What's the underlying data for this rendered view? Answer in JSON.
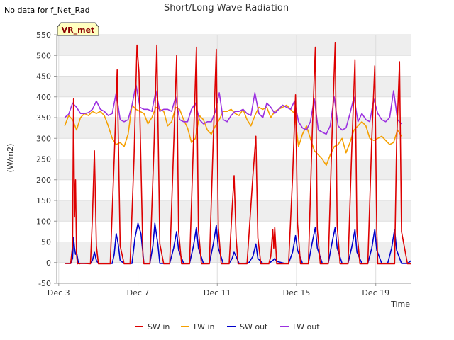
{
  "note": "No data for f_Net_Rad",
  "badge": "VR_met",
  "colors": {
    "sw_in": "#dd0000",
    "lw_in": "#f5a000",
    "sw_out": "#0000cc",
    "lw_out": "#9b30e0",
    "band": "#eeeeee",
    "badge_fill": "#ffffc0",
    "badge_stroke": "#444444"
  },
  "chart_data": {
    "type": "line",
    "title": "Short/Long Wave Radiation",
    "xlabel": "Time",
    "ylabel": "(W/m2)",
    "xlim": [
      2.9,
      20.8
    ],
    "ylim": [
      -50,
      550
    ],
    "yticks": [
      -50,
      0,
      50,
      100,
      150,
      200,
      250,
      300,
      350,
      400,
      450,
      500,
      550
    ],
    "xticks": [
      {
        "value": 3,
        "label": "Dec 3"
      },
      {
        "value": 7,
        "label": "Dec 7"
      },
      {
        "value": 11,
        "label": "Dec 11"
      },
      {
        "value": 15,
        "label": "Dec 15"
      },
      {
        "value": 19,
        "label": "Dec 19"
      }
    ],
    "legend_position": "bottom-center",
    "series": [
      {
        "key": "sw_in",
        "name": "SW in",
        "x": [
          3.3,
          3.6,
          3.7,
          3.75,
          3.8,
          3.85,
          3.9,
          3.95,
          4.0,
          4.05,
          4.1,
          4.3,
          4.6,
          4.7,
          4.8,
          4.9,
          5.0,
          5.1,
          5.3,
          5.6,
          5.8,
          5.95,
          6.1,
          6.3,
          6.6,
          6.8,
          6.95,
          7.05,
          7.25,
          7.3,
          7.6,
          7.8,
          7.95,
          8.1,
          8.3,
          8.6,
          8.8,
          8.95,
          9.05,
          9.2,
          9.3,
          9.6,
          9.8,
          9.95,
          10.05,
          10.2,
          10.3,
          10.6,
          10.8,
          10.95,
          11.05,
          11.2,
          11.3,
          11.6,
          11.75,
          11.85,
          11.95,
          12.05,
          12.3,
          12.5,
          12.8,
          12.95,
          13.05,
          13.2,
          13.3,
          13.6,
          13.7,
          13.8,
          13.85,
          13.9,
          14.0,
          14.2,
          14.4,
          14.6,
          14.8,
          14.95,
          15.05,
          15.2,
          15.3,
          15.6,
          15.8,
          15.95,
          16.05,
          16.2,
          16.3,
          16.6,
          16.8,
          16.95,
          17.05,
          17.2,
          17.3,
          17.6,
          17.8,
          17.95,
          18.05,
          18.2,
          18.3,
          18.6,
          18.8,
          18.95,
          19.05,
          19.1,
          19.2,
          19.3,
          19.6,
          19.8,
          19.95,
          20.05,
          20.2,
          20.3,
          20.6,
          20.8
        ],
        "values": [
          -2,
          -2,
          40,
          395,
          110,
          200,
          20,
          -3,
          -2,
          -3,
          -2,
          -2,
          -3,
          110,
          270,
          40,
          -3,
          -3,
          -3,
          -3,
          250,
          465,
          40,
          -3,
          -3,
          250,
          525,
          460,
          15,
          -3,
          -3,
          270,
          525,
          45,
          -3,
          -3,
          280,
          500,
          75,
          -3,
          -3,
          -3,
          290,
          520,
          80,
          -3,
          -3,
          -3,
          300,
          515,
          85,
          -3,
          -3,
          -3,
          130,
          210,
          60,
          -3,
          -3,
          -3,
          210,
          305,
          60,
          -3,
          -3,
          -3,
          15,
          80,
          35,
          85,
          -3,
          -3,
          -3,
          -3,
          205,
          405,
          95,
          -3,
          -3,
          -3,
          320,
          520,
          80,
          -3,
          -3,
          -3,
          320,
          530,
          90,
          -3,
          -3,
          -3,
          290,
          490,
          75,
          -3,
          -3,
          -3,
          300,
          475,
          80,
          -3,
          -3,
          -3,
          -3,
          -3,
          -3,
          290,
          485,
          75,
          -3,
          -3
        ]
      },
      {
        "key": "lw_in",
        "name": "LW in",
        "x": [
          3.3,
          3.5,
          3.7,
          3.9,
          4.1,
          4.3,
          4.5,
          4.7,
          4.9,
          5.1,
          5.3,
          5.5,
          5.7,
          5.9,
          6.1,
          6.3,
          6.5,
          6.7,
          6.9,
          7.1,
          7.3,
          7.5,
          7.7,
          7.9,
          8.1,
          8.3,
          8.5,
          8.7,
          8.9,
          9.1,
          9.3,
          9.5,
          9.7,
          9.9,
          10.1,
          10.3,
          10.5,
          10.7,
          10.9,
          11.1,
          11.3,
          11.5,
          11.7,
          11.9,
          12.1,
          12.3,
          12.5,
          12.7,
          12.9,
          13.1,
          13.3,
          13.5,
          13.7,
          13.9,
          14.1,
          14.3,
          14.5,
          14.7,
          14.9,
          15.1,
          15.3,
          15.5,
          15.7,
          15.9,
          16.1,
          16.3,
          16.5,
          16.7,
          16.9,
          17.1,
          17.3,
          17.5,
          17.7,
          17.9,
          18.1,
          18.3,
          18.5,
          18.7,
          18.9,
          19.1,
          19.3,
          19.5,
          19.7,
          19.9,
          20.1,
          20.3
        ],
        "values": [
          330,
          355,
          345,
          320,
          350,
          360,
          355,
          365,
          360,
          365,
          355,
          330,
          300,
          285,
          290,
          280,
          310,
          380,
          370,
          365,
          360,
          335,
          350,
          375,
          370,
          365,
          330,
          340,
          375,
          370,
          345,
          325,
          290,
          300,
          355,
          345,
          320,
          310,
          330,
          345,
          365,
          365,
          370,
          360,
          355,
          370,
          345,
          330,
          355,
          375,
          370,
          375,
          350,
          365,
          370,
          375,
          380,
          370,
          360,
          280,
          310,
          330,
          300,
          270,
          260,
          250,
          235,
          260,
          280,
          285,
          300,
          265,
          290,
          320,
          330,
          340,
          330,
          300,
          295,
          300,
          305,
          295,
          285,
          290,
          320,
          305
        ]
      },
      {
        "key": "sw_out",
        "name": "SW out",
        "x": [
          3.3,
          3.6,
          3.7,
          3.75,
          3.8,
          3.85,
          3.9,
          4.0,
          4.3,
          4.6,
          4.7,
          4.8,
          4.9,
          5.0,
          5.3,
          5.7,
          5.8,
          5.9,
          6.0,
          6.1,
          6.3,
          6.7,
          6.85,
          7.0,
          7.15,
          7.3,
          7.6,
          7.75,
          7.85,
          8.0,
          8.1,
          8.3,
          8.6,
          8.8,
          8.95,
          9.05,
          9.3,
          9.6,
          9.8,
          9.95,
          10.05,
          10.3,
          10.6,
          10.8,
          10.95,
          11.05,
          11.3,
          11.6,
          11.75,
          11.85,
          11.95,
          12.1,
          12.4,
          12.6,
          12.8,
          12.95,
          13.05,
          13.3,
          13.6,
          13.8,
          13.9,
          14.0,
          14.4,
          14.6,
          14.8,
          14.95,
          15.05,
          15.3,
          15.6,
          15.8,
          15.95,
          16.05,
          16.3,
          16.6,
          16.8,
          16.95,
          17.05,
          17.3,
          17.6,
          17.8,
          17.95,
          18.05,
          18.3,
          18.6,
          18.8,
          18.95,
          19.05,
          19.3,
          19.6,
          19.8,
          19.95,
          20.05,
          20.3,
          20.6,
          20.8
        ],
        "values": [
          -2,
          -2,
          10,
          60,
          35,
          20,
          25,
          -2,
          -2,
          -2,
          5,
          25,
          5,
          -2,
          -2,
          -2,
          20,
          70,
          45,
          5,
          -2,
          -2,
          60,
          95,
          70,
          -2,
          -2,
          40,
          95,
          45,
          -2,
          -2,
          -2,
          35,
          75,
          30,
          -2,
          -2,
          40,
          85,
          35,
          -2,
          -2,
          45,
          90,
          35,
          -2,
          -2,
          10,
          25,
          15,
          -2,
          -2,
          0,
          15,
          45,
          10,
          -2,
          -2,
          5,
          10,
          3,
          -2,
          -2,
          25,
          65,
          30,
          -2,
          -2,
          50,
          85,
          35,
          -2,
          -2,
          50,
          85,
          35,
          -2,
          -2,
          40,
          80,
          25,
          -2,
          -2,
          35,
          80,
          30,
          -2,
          -2,
          35,
          80,
          30,
          -2,
          -2,
          5
        ]
      },
      {
        "key": "lw_out",
        "name": "LW out",
        "x": [
          3.3,
          3.5,
          3.7,
          3.9,
          4.1,
          4.3,
          4.5,
          4.7,
          4.9,
          5.1,
          5.3,
          5.5,
          5.7,
          5.9,
          6.1,
          6.3,
          6.5,
          6.7,
          6.9,
          7.1,
          7.3,
          7.5,
          7.7,
          7.9,
          8.1,
          8.3,
          8.5,
          8.7,
          8.9,
          9.1,
          9.3,
          9.5,
          9.7,
          9.9,
          10.1,
          10.3,
          10.5,
          10.7,
          10.9,
          11.1,
          11.3,
          11.5,
          11.7,
          11.9,
          12.1,
          12.3,
          12.5,
          12.7,
          12.9,
          13.1,
          13.3,
          13.5,
          13.7,
          13.9,
          14.1,
          14.3,
          14.5,
          14.7,
          14.9,
          15.1,
          15.3,
          15.5,
          15.7,
          15.9,
          16.1,
          16.3,
          16.5,
          16.7,
          16.9,
          17.1,
          17.3,
          17.5,
          17.7,
          17.9,
          18.1,
          18.3,
          18.5,
          18.7,
          18.9,
          19.1,
          19.3,
          19.5,
          19.7,
          19.9,
          20.1,
          20.3
        ],
        "values": [
          350,
          358,
          385,
          375,
          360,
          360,
          362,
          370,
          390,
          370,
          365,
          355,
          360,
          410,
          345,
          340,
          345,
          380,
          430,
          375,
          370,
          370,
          365,
          415,
          365,
          370,
          370,
          365,
          400,
          345,
          340,
          340,
          370,
          385,
          345,
          335,
          340,
          340,
          365,
          410,
          345,
          340,
          355,
          365,
          365,
          370,
          360,
          355,
          410,
          360,
          350,
          385,
          375,
          360,
          370,
          380,
          375,
          370,
          390,
          340,
          325,
          320,
          340,
          395,
          320,
          315,
          310,
          330,
          400,
          330,
          320,
          325,
          360,
          400,
          340,
          360,
          345,
          340,
          395,
          360,
          345,
          340,
          350,
          415,
          345,
          335
        ]
      }
    ]
  }
}
